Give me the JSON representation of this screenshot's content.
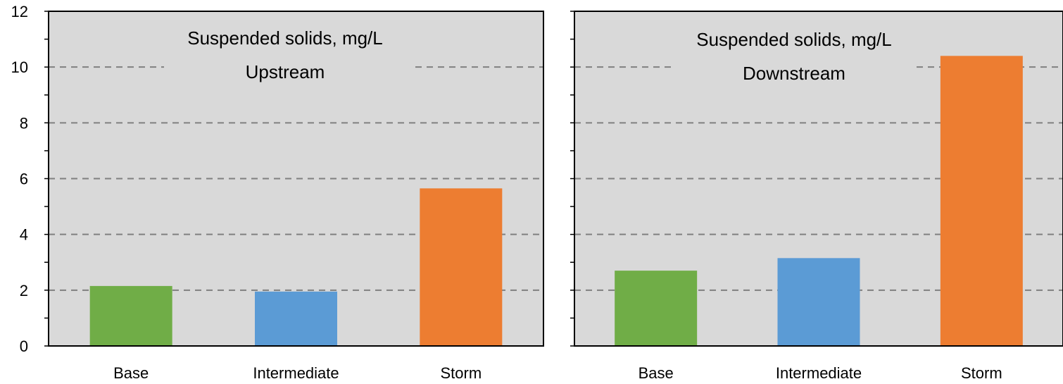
{
  "chart_data": [
    {
      "type": "bar",
      "title": "Suspended solids, mg/L",
      "subtitle": "Upstream",
      "categories": [
        "Base",
        "Intermediate",
        "Storm"
      ],
      "values": [
        2.15,
        1.95,
        5.65
      ],
      "colors": [
        "#70ad47",
        "#5b9bd5",
        "#ed7d31"
      ],
      "ylim": [
        0,
        12
      ],
      "yticks": [
        "0",
        "2",
        "4",
        "6",
        "8",
        "10",
        "12"
      ],
      "grid": true,
      "xlabel": "",
      "ylabel": ""
    },
    {
      "type": "bar",
      "title": "Suspended solids, mg/L",
      "subtitle": "Downstream",
      "categories": [
        "Base",
        "Intermediate",
        "Storm"
      ],
      "values": [
        2.7,
        3.15,
        10.4
      ],
      "colors": [
        "#70ad47",
        "#5b9bd5",
        "#ed7d31"
      ],
      "ylim": [
        0,
        12
      ],
      "yticks": [],
      "grid": true,
      "xlabel": "",
      "ylabel": ""
    }
  ],
  "style": {
    "plot_background": "#d9d9d9",
    "gridline_color": "#808080"
  }
}
